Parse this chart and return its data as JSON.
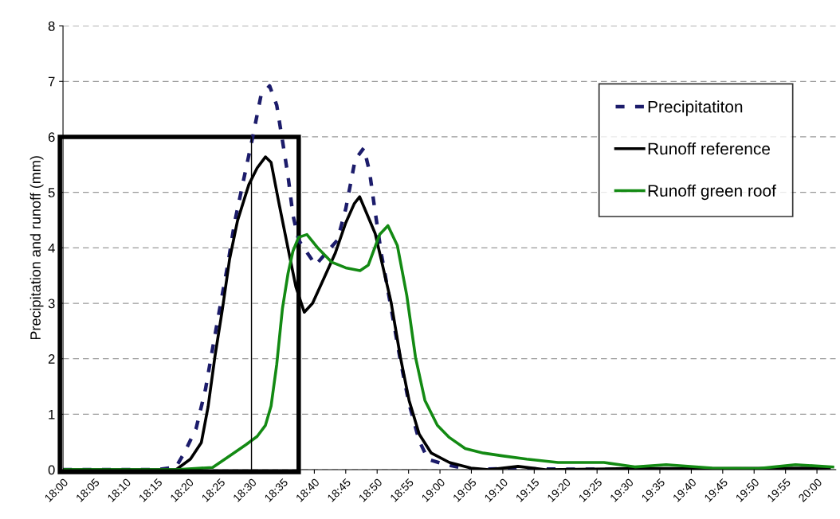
{
  "chart_data": {
    "type": "line",
    "ylabel": "Precipitation and runoff (mm)",
    "xlim": [
      18.0,
      20.05
    ],
    "ylim": [
      0,
      8
    ],
    "yticks": [
      0,
      1,
      2,
      3,
      4,
      5,
      6,
      7,
      8
    ],
    "xticks": [
      {
        "value": 18.0,
        "label": "18:00"
      },
      {
        "value": 18.0833,
        "label": "18:05"
      },
      {
        "value": 18.1667,
        "label": "18:10"
      },
      {
        "value": 18.25,
        "label": "18:15"
      },
      {
        "value": 18.3333,
        "label": "18:20"
      },
      {
        "value": 18.4167,
        "label": "18:25"
      },
      {
        "value": 18.5,
        "label": "18:30"
      },
      {
        "value": 18.5833,
        "label": "18:35"
      },
      {
        "value": 18.6667,
        "label": "18:40"
      },
      {
        "value": 18.75,
        "label": "18:45"
      },
      {
        "value": 18.8333,
        "label": "18:50"
      },
      {
        "value": 18.9167,
        "label": "18:55"
      },
      {
        "value": 19.0,
        "label": "19:00"
      },
      {
        "value": 19.0833,
        "label": "19:05"
      },
      {
        "value": 19.1667,
        "label": "19:10"
      },
      {
        "value": 19.25,
        "label": "19:15"
      },
      {
        "value": 19.3333,
        "label": "19:20"
      },
      {
        "value": 19.4167,
        "label": "19:25"
      },
      {
        "value": 19.5,
        "label": "19:30"
      },
      {
        "value": 19.5833,
        "label": "19:35"
      },
      {
        "value": 19.6667,
        "label": "19:40"
      },
      {
        "value": 19.75,
        "label": "19:45"
      },
      {
        "value": 19.8333,
        "label": "19:50"
      },
      {
        "value": 19.9167,
        "label": "19:55"
      },
      {
        "value": 20.0,
        "label": "20:00"
      }
    ],
    "grid": "y",
    "legend": "right",
    "marker": "none",
    "ref_lines": [
      {
        "axis": "x",
        "value": 18.5,
        "color": "#000000",
        "line_style": "solid"
      }
    ],
    "series": [
      {
        "name": "Precipitatiton",
        "color": "#1c1c6b",
        "line_style": "dashed",
        "x": [
          18.0,
          18.25,
          18.3,
          18.323,
          18.353,
          18.378,
          18.397,
          18.418,
          18.437,
          18.455,
          18.478,
          18.503,
          18.525,
          18.548,
          18.567,
          18.582,
          18.597,
          18.61,
          18.625,
          18.67,
          18.728,
          18.75,
          18.775,
          18.798,
          18.813,
          18.828,
          18.845,
          18.87,
          18.895,
          18.918,
          18.945,
          18.968,
          19.01,
          19.083,
          19.167,
          19.333,
          19.583
        ],
        "values": [
          0,
          0,
          0.05,
          0.32,
          0.74,
          1.45,
          2.19,
          2.99,
          3.69,
          4.45,
          5.19,
          5.99,
          6.74,
          6.92,
          6.57,
          5.94,
          5.29,
          4.59,
          4.14,
          3.69,
          4.14,
          4.7,
          5.59,
          5.8,
          5.38,
          4.65,
          3.87,
          2.93,
          1.97,
          1.19,
          0.52,
          0.19,
          0.1,
          0.0,
          0.02,
          0.01,
          0.0
        ]
      },
      {
        "name": "Runoff reference",
        "color": "#000000",
        "line_style": "solid",
        "x": [
          18.0,
          18.3,
          18.338,
          18.367,
          18.385,
          18.403,
          18.423,
          18.442,
          18.463,
          18.493,
          18.515,
          18.537,
          18.552,
          18.573,
          18.597,
          18.618,
          18.64,
          18.662,
          18.692,
          18.722,
          18.75,
          18.773,
          18.787,
          18.828,
          18.87,
          18.895,
          18.918,
          18.945,
          18.977,
          19.025,
          19.082,
          19.13,
          19.207,
          19.28,
          19.5,
          19.75,
          20.033
        ],
        "values": [
          0,
          0,
          0.19,
          0.49,
          1.14,
          2.04,
          2.9,
          3.8,
          4.49,
          5.14,
          5.44,
          5.64,
          5.54,
          4.8,
          3.99,
          3.29,
          2.84,
          3.0,
          3.45,
          3.9,
          4.45,
          4.8,
          4.92,
          4.26,
          3.03,
          2.03,
          1.25,
          0.64,
          0.3,
          0.13,
          0.03,
          0.0,
          0.06,
          0.0,
          0.02,
          0.02,
          0.03
        ]
      },
      {
        "name": "Runoff green roof",
        "color": "#138a13",
        "line_style": "solid",
        "x": [
          18.0,
          18.3,
          18.397,
          18.442,
          18.485,
          18.515,
          18.537,
          18.552,
          18.567,
          18.582,
          18.597,
          18.61,
          18.625,
          18.647,
          18.677,
          18.713,
          18.75,
          18.788,
          18.81,
          18.84,
          18.862,
          18.887,
          18.912,
          18.935,
          18.96,
          18.993,
          19.025,
          19.067,
          19.115,
          19.165,
          19.23,
          19.313,
          19.435,
          19.517,
          19.6,
          19.722,
          19.845,
          19.943,
          20.042
        ],
        "values": [
          0,
          0,
          0.04,
          0.25,
          0.45,
          0.6,
          0.8,
          1.15,
          1.9,
          2.9,
          3.54,
          3.94,
          4.19,
          4.24,
          3.99,
          3.74,
          3.64,
          3.59,
          3.69,
          4.24,
          4.4,
          4.04,
          3.14,
          2.03,
          1.25,
          0.8,
          0.58,
          0.38,
          0.3,
          0.25,
          0.19,
          0.13,
          0.13,
          0.05,
          0.09,
          0.03,
          0.02,
          0.09,
          0.05
        ]
      }
    ]
  }
}
